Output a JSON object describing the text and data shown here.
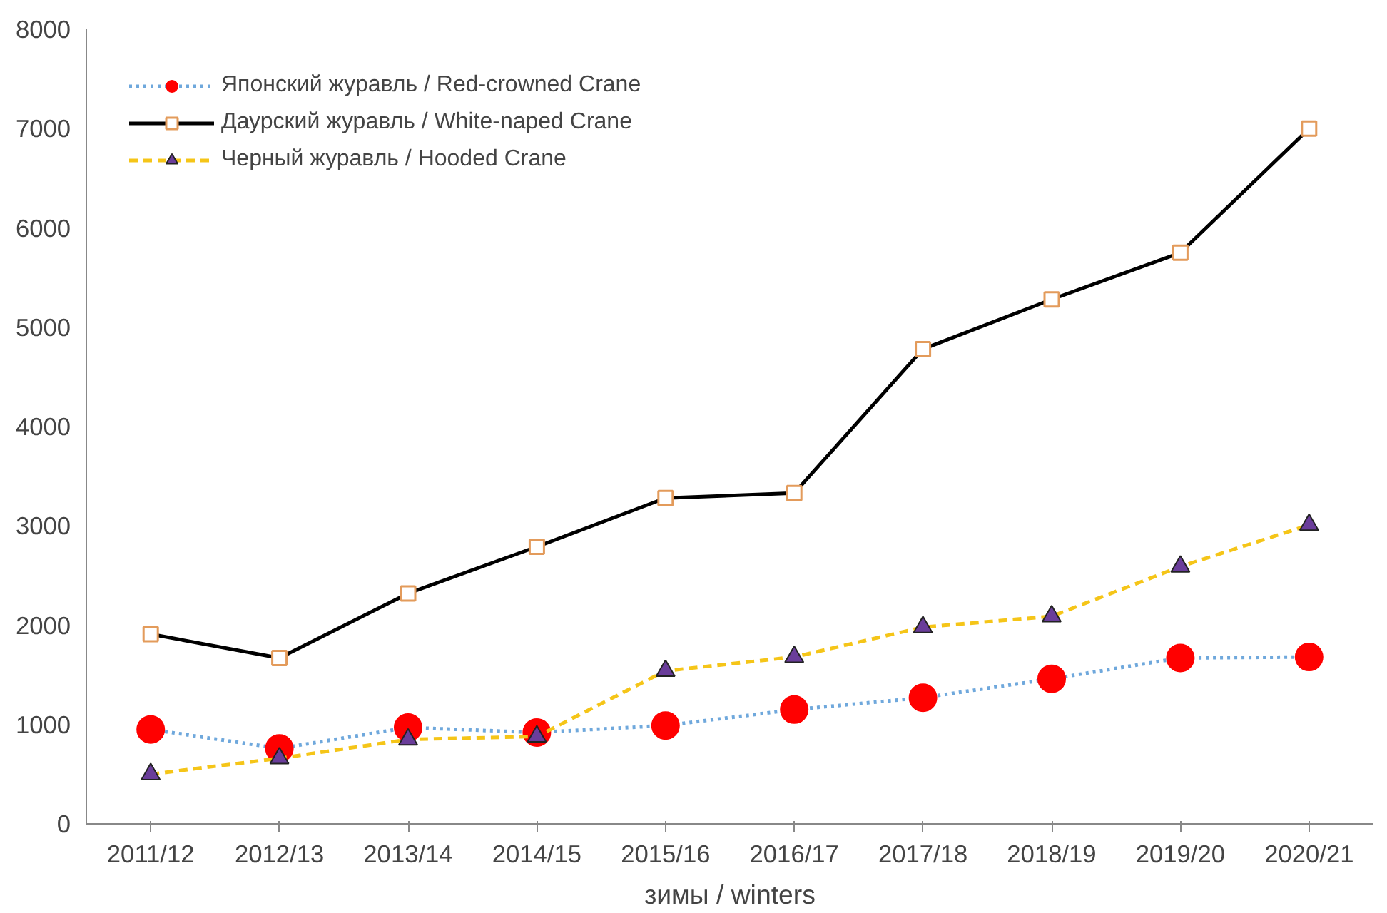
{
  "chart_data": {
    "type": "line",
    "xlabel": "зимы / winters",
    "categories": [
      "2011/12",
      "2012/13",
      "2013/14",
      "2014/15",
      "2015/16",
      "2016/17",
      "2017/18",
      "2018/19",
      "2019/20",
      "2020/21"
    ],
    "series": [
      {
        "name": "Японский журавль / Red-crowned Crane",
        "color": "#6fa8dc",
        "colors": [
          "#ff0000",
          "#ff0000",
          "#ff0000",
          "#ff0000",
          "#ff0000",
          "#ff0000",
          "#ff0000",
          "#ff0000",
          "#ff0000",
          "#ff0000"
        ],
        "marker": "circle",
        "line_style": "dotted",
        "values": [
          950,
          760,
          970,
          920,
          990,
          1150,
          1270,
          1460,
          1670,
          1680
        ]
      },
      {
        "name": "Даурский журавль / White-naped Crane",
        "color": "#000000",
        "colors": [
          "#e39b5b",
          "#e39b5b",
          "#e39b5b",
          "#e39b5b",
          "#e39b5b",
          "#e39b5b",
          "#e39b5b",
          "#e39b5b",
          "#e39b5b",
          "#e39b5b"
        ],
        "marker": "square",
        "line_style": "solid",
        "values": [
          1910,
          1670,
          2320,
          2790,
          3280,
          3330,
          4780,
          5280,
          5750,
          7000
        ]
      },
      {
        "name": "Черный журавль / Hooded Crane",
        "color": "#f5c518",
        "colors": [
          "#6a3d9a",
          "#6a3d9a",
          "#6a3d9a",
          "#6a3d9a",
          "#6a3d9a",
          "#6a3d9a",
          "#6a3d9a",
          "#6a3d9a",
          "#6a3d9a",
          "#6a3d9a"
        ],
        "marker": "triangle",
        "line_style": "dashed",
        "values": [
          500,
          660,
          850,
          880,
          1540,
          1680,
          1980,
          2090,
          2590,
          3010
        ]
      }
    ],
    "ylim": [
      0,
      8000
    ],
    "yticks": [
      0,
      1000,
      2000,
      3000,
      4000,
      5000,
      6000,
      7000,
      8000
    ],
    "grid": false,
    "legend": "top left"
  }
}
